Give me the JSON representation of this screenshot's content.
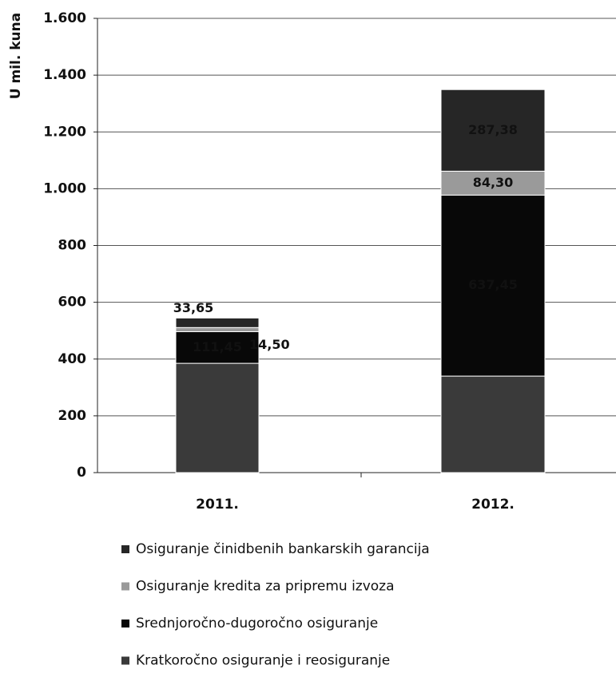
{
  "chart_data": {
    "type": "bar",
    "stacked": true,
    "y_label": "U mil. kuna",
    "categories": [
      "2011.",
      "2012."
    ],
    "series": [
      {
        "name": "Kratkoročno osiguranje i reosiguranje",
        "color": "#3a3a3a",
        "values": [
          385,
          340
        ]
      },
      {
        "name": "Srednjoročno-dugoročno osiguranje",
        "color": "#080808",
        "values": [
          111.45,
          637.45
        ],
        "value_labels": [
          "111,45",
          "637,45"
        ]
      },
      {
        "name": "Osiguranje kredita za pripremu izvoza",
        "color": "#9a9a9a",
        "values": [
          14.5,
          84.3
        ],
        "value_labels": [
          "14,50",
          "84,30"
        ]
      },
      {
        "name": "Osiguranje činidbenih bankarskih garancija",
        "color": "#262626",
        "values": [
          33.65,
          287.38
        ],
        "value_labels": [
          "33,65",
          "287,38"
        ]
      }
    ],
    "ylim": [
      0,
      1600
    ],
    "yticks": [
      0,
      200,
      400,
      600,
      800,
      {
        "value": 1000,
        "label": "1.000"
      },
      {
        "value": 1200,
        "label": "1.200"
      },
      {
        "value": 1400,
        "label": "1.400"
      },
      {
        "value": 1600,
        "label": "1.600"
      }
    ],
    "grid": true
  }
}
